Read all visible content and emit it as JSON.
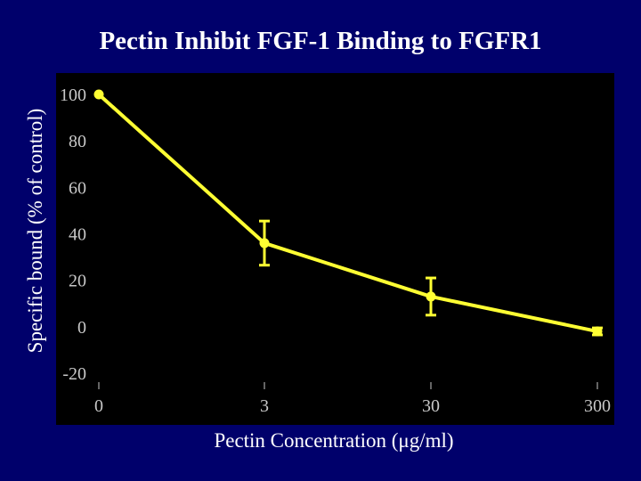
{
  "slide": {
    "title": "Pectin Inhibit FGF-1 Binding to FGFR1"
  },
  "colors": {
    "background": "#00006b",
    "plot_background": "#000000",
    "series": "#ffff33",
    "tick_text": "#c8c8c8"
  },
  "chart_data": {
    "type": "line",
    "title": "Pectin Inhibit FGF-1 Binding to FGFR1",
    "xlabel": "Pectin Concentration (μg/ml)",
    "ylabel": "Specific bound (% of control)",
    "x_scale": "categorical",
    "categories": [
      "0",
      "3",
      "30",
      "300"
    ],
    "y_ticks": [
      100,
      80,
      60,
      40,
      20,
      0,
      -20
    ],
    "ylim": [
      -20,
      100
    ],
    "grid": false,
    "legend": "none",
    "series": [
      {
        "values": [
          100,
          36,
          13,
          -2
        ],
        "error": [
          0,
          9.5,
          8,
          1.5
        ]
      }
    ]
  }
}
